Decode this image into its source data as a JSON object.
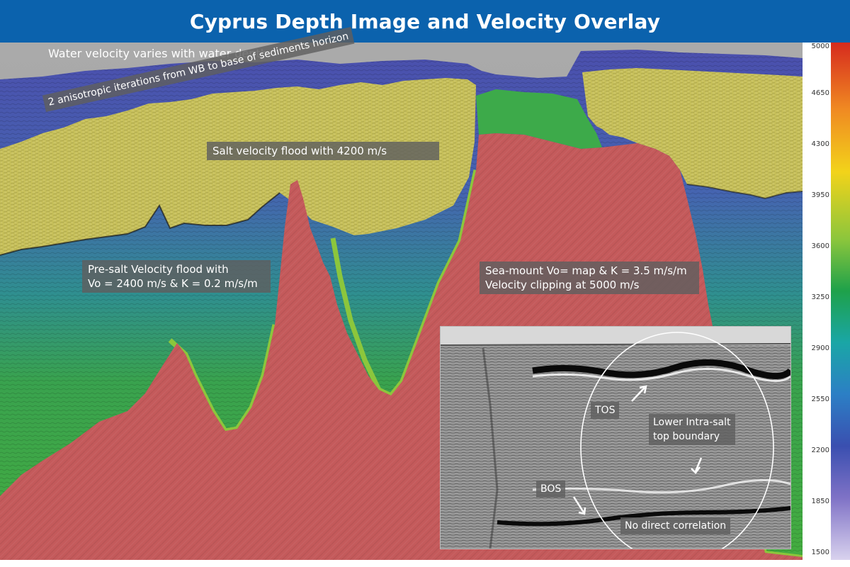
{
  "title": "Cyprus Depth Image and Velocity Overlay",
  "annotations": {
    "water_velocity": "Water velocity varies with water depth",
    "anisotropic": "2 anisotropic iterations from WB to base of sediments horizon",
    "salt_flood": "Salt velocity flood with  4200 m/s",
    "presalt_line1": "Pre-salt Velocity flood with",
    "presalt_line2": "Vo = 2400 m/s & K = 0.2 m/s/m",
    "seamount_line1": "Sea-mount Vo= map & K = 3.5 m/s/m",
    "seamount_line2": "Velocity clipping at 5000 m/s"
  },
  "inset": {
    "tos": "TOS",
    "lower_line1": "Lower Intra-salt",
    "lower_line2": "top boundary",
    "bos": "BOS",
    "no_corr": "No direct correlation"
  },
  "colorscale": {
    "ticks": [
      "5000",
      "4650",
      "4300",
      "3950",
      "3600",
      "3250",
      "2900",
      "2550",
      "2200",
      "1850",
      "1500"
    ]
  },
  "colors": {
    "header": "#0b62ad",
    "salt_yellow": "#c9c25a",
    "presalt_blue": "#5a55b5",
    "seamount_red": "#c4595b",
    "sediment_green": "#3fae52"
  }
}
